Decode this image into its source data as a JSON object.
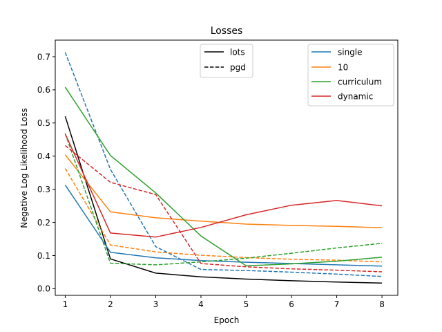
{
  "chart_data": {
    "type": "line",
    "title": "Losses",
    "xlabel": "Epoch",
    "ylabel": "Negative Log Likelihood Loss",
    "xlim": [
      0.78,
      8.35
    ],
    "ylim": [
      -0.02,
      0.75
    ],
    "xticks": [
      1,
      2,
      3,
      4,
      5,
      6,
      7,
      8
    ],
    "yticks": [
      0.0,
      0.1,
      0.2,
      0.3,
      0.4,
      0.5,
      0.6,
      0.7
    ],
    "ytick_labels": [
      "0.0",
      "0.1",
      "0.2",
      "0.3",
      "0.4",
      "0.5",
      "0.6",
      "0.7"
    ],
    "grid": false,
    "x": [
      1,
      2,
      3,
      4,
      5,
      6,
      7,
      8
    ],
    "style_legend": {
      "placement": "top-center",
      "entries": [
        {
          "name": "lots",
          "linestyle": "solid",
          "color": "#000000"
        },
        {
          "name": "pgd",
          "linestyle": "dashed",
          "color": "#000000"
        }
      ]
    },
    "color_legend": {
      "placement": "top-right",
      "entries": [
        {
          "name": "single",
          "color": "#1f77b4"
        },
        {
          "name": "10",
          "color": "#ff7f0e"
        },
        {
          "name": "curriculum",
          "color": "#2ca02c"
        },
        {
          "name": "dynamic",
          "color": "#d62728"
        }
      ]
    },
    "series": [
      {
        "method": "lots",
        "linestyle": "solid",
        "color": "#000000",
        "values": [
          0.52,
          0.09,
          0.047,
          0.036,
          0.029,
          0.024,
          0.02,
          0.017
        ]
      },
      {
        "method": "single",
        "linestyle": "solid",
        "color": "#1f77b4",
        "values": [
          0.313,
          0.11,
          0.093,
          0.085,
          0.08,
          0.076,
          0.072,
          0.068
        ]
      },
      {
        "method": "single",
        "linestyle": "dashed",
        "color": "#1f77b4",
        "values": [
          0.713,
          0.36,
          0.127,
          0.058,
          0.055,
          0.05,
          0.044,
          0.037
        ]
      },
      {
        "method": "10",
        "linestyle": "solid",
        "color": "#ff7f0e",
        "values": [
          0.404,
          0.232,
          0.214,
          0.204,
          0.195,
          0.191,
          0.188,
          0.184
        ]
      },
      {
        "method": "10",
        "linestyle": "dashed",
        "color": "#ff7f0e",
        "values": [
          0.363,
          0.132,
          0.111,
          0.101,
          0.094,
          0.089,
          0.086,
          0.081
        ]
      },
      {
        "method": "curriculum",
        "linestyle": "solid",
        "color": "#2ca02c",
        "values": [
          0.608,
          0.402,
          0.289,
          0.159,
          0.069,
          0.075,
          0.083,
          0.095
        ]
      },
      {
        "method": "curriculum",
        "linestyle": "dashed",
        "color": "#2ca02c",
        "values": [
          0.468,
          0.077,
          0.072,
          0.081,
          0.092,
          0.107,
          0.123,
          0.137
        ]
      },
      {
        "method": "dynamic",
        "linestyle": "solid",
        "color": "#d62728",
        "values": [
          0.467,
          0.168,
          0.156,
          0.185,
          0.223,
          0.252,
          0.266,
          0.25
        ]
      },
      {
        "method": "dynamic",
        "linestyle": "dashed",
        "color": "#d62728",
        "values": [
          0.432,
          0.321,
          0.284,
          0.076,
          0.066,
          0.06,
          0.056,
          0.051
        ]
      }
    ]
  }
}
